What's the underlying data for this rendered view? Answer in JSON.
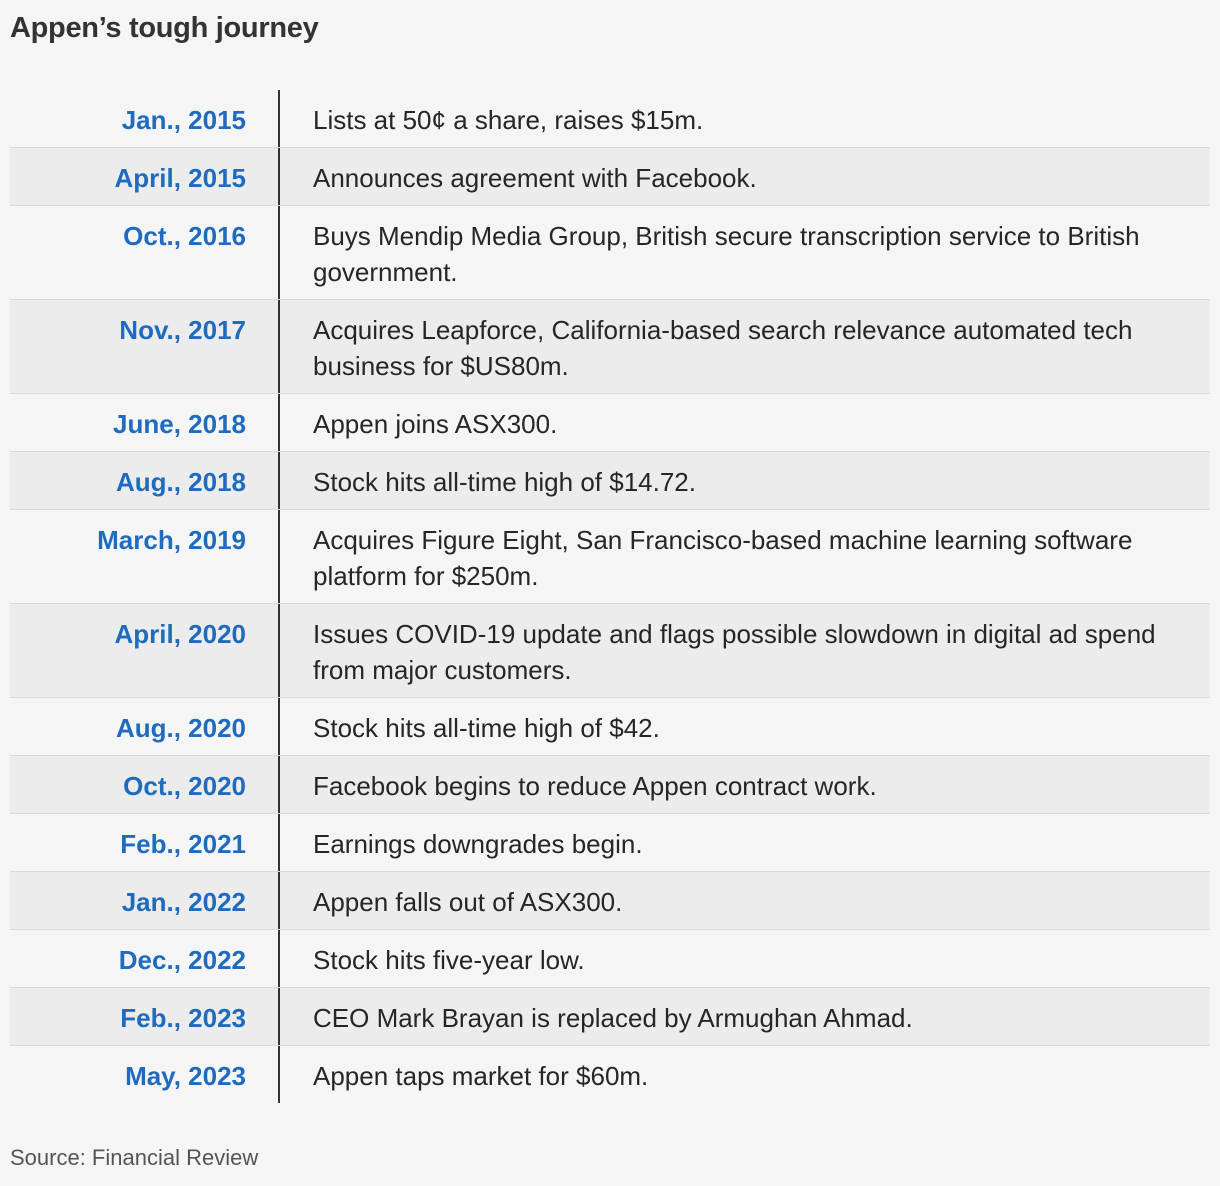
{
  "chart_data": {
    "type": "table",
    "title": "Appen’s tough journey",
    "source": "Source: Financial Review",
    "rows": [
      {
        "date": "Jan., 2015",
        "event": "Lists at 50¢ a share, raises $15m."
      },
      {
        "date": "April, 2015",
        "event": "Announces agreement with Facebook."
      },
      {
        "date": "Oct., 2016",
        "event": "Buys Mendip Media Group, British secure transcription service to British government."
      },
      {
        "date": "Nov., 2017",
        "event": "Acquires Leapforce, California-based search relevance automated tech business for $US80m."
      },
      {
        "date": "June, 2018",
        "event": "Appen joins ASX300."
      },
      {
        "date": "Aug., 2018",
        "event": "Stock hits all-time high of $14.72."
      },
      {
        "date": "March, 2019",
        "event": "Acquires Figure Eight, San Francisco-based machine learning software platform for $250m."
      },
      {
        "date": "April, 2020",
        "event": "Issues COVID-19 update and flags possible slowdown in digital ad spend from major customers."
      },
      {
        "date": "Aug., 2020",
        "event": "Stock hits all-time high of $42."
      },
      {
        "date": "Oct., 2020",
        "event": "Facebook begins to reduce Appen contract work."
      },
      {
        "date": "Feb., 2021",
        "event": "Earnings downgrades begin."
      },
      {
        "date": "Jan., 2022",
        "event": "Appen falls out of ASX300."
      },
      {
        "date": "Dec., 2022",
        "event": "Stock hits five-year low."
      },
      {
        "date": "Feb., 2023",
        "event": "CEO Mark Brayan is replaced by Armughan Ahmad."
      },
      {
        "date": "May, 2023",
        "event": "Appen taps market for $60m."
      }
    ]
  }
}
